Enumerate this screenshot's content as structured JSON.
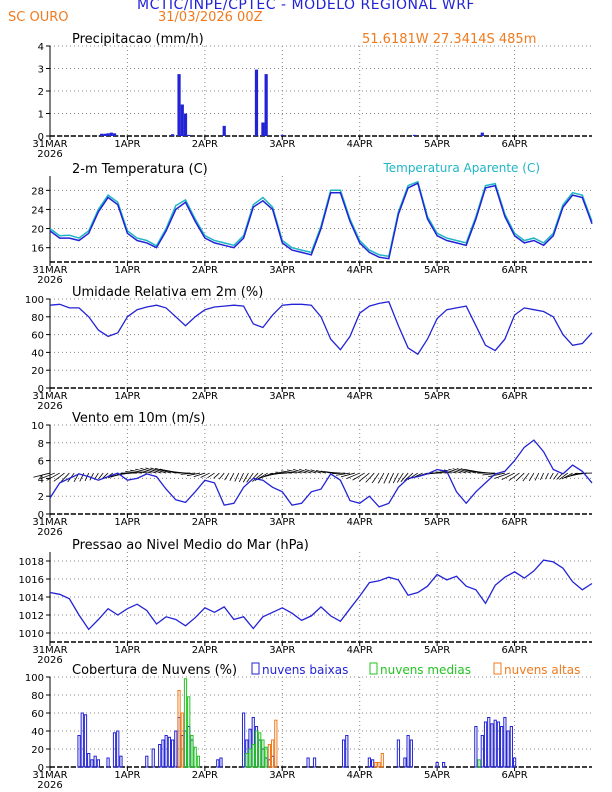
{
  "header": {
    "title": "MCTIC/INPE/CPTEC - MODELO REGIONAL WRF",
    "station": "SC OURO",
    "datetime": "31/03/2026 00Z",
    "coords": "51.6181W 27.3414S 485m"
  },
  "colors": {
    "blue": "#2323d6",
    "cyan": "#1fb5c6",
    "green": "#22c422",
    "orange": "#f07a1e",
    "black": "#000000"
  },
  "x_axis": {
    "tick_labels": [
      "31MAR",
      "1APR",
      "2APR",
      "3APR",
      "4APR",
      "5APR",
      "6APR"
    ],
    "year_label": "2026",
    "range_hours": [
      0,
      168
    ]
  },
  "chart_data": [
    {
      "id": "precip",
      "type": "bar",
      "title": "Precipitacao (mm/h)",
      "ylim": [
        0,
        4
      ],
      "yticks": [
        0,
        1,
        2,
        3,
        4
      ],
      "x_hours": [
        16,
        17,
        18,
        19,
        20,
        38,
        40,
        41,
        42,
        43,
        54,
        64,
        66,
        67,
        72,
        113,
        134
      ],
      "values": [
        0.1,
        0.1,
        0.12,
        0.15,
        0.12,
        0.08,
        2.75,
        1.4,
        1.0,
        0.05,
        0.45,
        2.95,
        0.6,
        2.75,
        0.05,
        0.05,
        0.15
      ]
    },
    {
      "id": "temp",
      "type": "line",
      "title": "2-m Temperatura (C)",
      "legend": "Temperatura Aparente (C)",
      "ylim": [
        13,
        31
      ],
      "yticks": [
        16,
        20,
        24,
        28
      ],
      "x_hours": [
        0,
        3,
        6,
        9,
        12,
        15,
        18,
        21,
        24,
        27,
        30,
        33,
        36,
        39,
        42,
        45,
        48,
        51,
        54,
        57,
        60,
        63,
        66,
        69,
        72,
        75,
        78,
        81,
        84,
        87,
        90,
        93,
        96,
        99,
        102,
        105,
        108,
        111,
        114,
        117,
        120,
        123,
        126,
        129,
        132,
        135,
        138,
        141,
        144,
        147,
        150,
        153,
        156,
        159,
        162,
        165,
        168
      ],
      "series": [
        {
          "name": "Temperatura 2m",
          "values": [
            19.5,
            18.0,
            18.0,
            17.5,
            19.0,
            23.5,
            26.5,
            25.0,
            19.0,
            17.5,
            17.0,
            16.0,
            19.5,
            24.0,
            25.5,
            21.5,
            18.0,
            17.0,
            16.5,
            16.0,
            18.0,
            24.5,
            25.8,
            24.0,
            17.0,
            15.5,
            15.0,
            14.5,
            20.0,
            27.5,
            27.5,
            21.5,
            17.0,
            15.0,
            14.0,
            13.7,
            23.0,
            28.5,
            29.5,
            22.0,
            18.5,
            17.5,
            17.0,
            16.5,
            22.0,
            28.5,
            29.0,
            22.5,
            18.5,
            17.0,
            17.5,
            16.5,
            18.5,
            24.5,
            27.0,
            26.5,
            21.0
          ]
        },
        {
          "name": "Temperatura Aparente",
          "values": [
            20.0,
            18.5,
            18.6,
            18.0,
            19.5,
            24.0,
            27.0,
            25.5,
            19.5,
            18.0,
            17.5,
            16.4,
            20.0,
            24.8,
            26.0,
            22.0,
            18.5,
            17.5,
            17.0,
            16.5,
            18.5,
            25.0,
            26.5,
            24.5,
            17.5,
            16.0,
            15.5,
            15.0,
            20.5,
            28.0,
            28.0,
            22.0,
            17.5,
            15.5,
            14.5,
            14.2,
            23.5,
            29.0,
            29.8,
            22.5,
            19.0,
            18.0,
            17.5,
            17.0,
            22.5,
            29.0,
            29.4,
            23.0,
            19.0,
            17.5,
            18.0,
            17.0,
            19.0,
            25.0,
            27.5,
            27.0,
            21.5
          ]
        }
      ]
    },
    {
      "id": "rh",
      "type": "line",
      "title": "Umidade Relativa em 2m (%)",
      "ylim": [
        0,
        100
      ],
      "yticks": [
        0,
        20,
        40,
        60,
        80,
        100
      ],
      "x_hours": [
        0,
        3,
        6,
        9,
        12,
        15,
        18,
        21,
        24,
        27,
        30,
        33,
        36,
        39,
        42,
        45,
        48,
        51,
        54,
        57,
        60,
        63,
        66,
        69,
        72,
        75,
        78,
        81,
        84,
        87,
        90,
        93,
        96,
        99,
        102,
        105,
        108,
        111,
        114,
        117,
        120,
        123,
        126,
        129,
        132,
        135,
        138,
        141,
        144,
        147,
        150,
        153,
        156,
        159,
        162,
        165,
        168
      ],
      "values": [
        93,
        94,
        90,
        90,
        80,
        65,
        58,
        62,
        80,
        88,
        91,
        93,
        90,
        80,
        70,
        80,
        88,
        91,
        92,
        93,
        92,
        72,
        68,
        82,
        93,
        94,
        94,
        93,
        80,
        55,
        43,
        58,
        84,
        92,
        95,
        97,
        70,
        45,
        38,
        55,
        78,
        88,
        90,
        92,
        70,
        48,
        42,
        55,
        82,
        90,
        88,
        86,
        80,
        60,
        48,
        50,
        62
      ]
    },
    {
      "id": "wind",
      "type": "line",
      "title": "Vento em 10m (m/s)",
      "ylim": [
        0,
        10
      ],
      "yticks": [
        0,
        2,
        4,
        6,
        8,
        10
      ],
      "x_hours": [
        0,
        3,
        6,
        9,
        12,
        15,
        18,
        21,
        24,
        27,
        30,
        33,
        36,
        39,
        42,
        45,
        48,
        51,
        54,
        57,
        60,
        63,
        66,
        69,
        72,
        75,
        78,
        81,
        84,
        87,
        90,
        93,
        96,
        99,
        102,
        105,
        108,
        111,
        114,
        117,
        120,
        123,
        126,
        129,
        132,
        135,
        138,
        141,
        144,
        147,
        150,
        153,
        156,
        159,
        162,
        165,
        168
      ],
      "values": [
        1.8,
        3.5,
        4.0,
        4.5,
        4.2,
        3.8,
        4.2,
        4.6,
        3.8,
        4.0,
        4.5,
        4.2,
        2.8,
        1.6,
        1.3,
        2.5,
        3.8,
        3.5,
        1.0,
        1.2,
        3.0,
        4.0,
        3.8,
        3.0,
        2.5,
        1.0,
        1.2,
        2.5,
        2.8,
        4.5,
        3.8,
        1.5,
        1.2,
        2.0,
        0.8,
        1.2,
        3.0,
        4.0,
        4.2,
        4.5,
        5.0,
        4.8,
        2.5,
        1.2,
        2.5,
        3.5,
        4.5,
        4.8,
        6.0,
        7.5,
        8.3,
        7.0,
        5.0,
        4.5,
        5.5,
        4.8,
        3.5
      ]
    },
    {
      "id": "pressure",
      "type": "line",
      "title": "Pressao ao Nivel Medio do Mar (hPa)",
      "ylim": [
        1009,
        1019
      ],
      "yticks": [
        1010,
        1012,
        1014,
        1016,
        1018
      ],
      "x_hours": [
        0,
        3,
        6,
        9,
        12,
        15,
        18,
        21,
        24,
        27,
        30,
        33,
        36,
        39,
        42,
        45,
        48,
        51,
        54,
        57,
        60,
        63,
        66,
        69,
        72,
        75,
        78,
        81,
        84,
        87,
        90,
        93,
        96,
        99,
        102,
        105,
        108,
        111,
        114,
        117,
        120,
        123,
        126,
        129,
        132,
        135,
        138,
        141,
        144,
        147,
        150,
        153,
        156,
        159,
        162,
        165,
        168
      ],
      "values": [
        1014.5,
        1014.3,
        1013.8,
        1012.0,
        1010.4,
        1011.5,
        1012.7,
        1012.0,
        1012.7,
        1013.2,
        1012.5,
        1011.0,
        1011.8,
        1011.5,
        1010.8,
        1011.7,
        1012.8,
        1012.3,
        1012.9,
        1011.5,
        1011.8,
        1010.5,
        1011.8,
        1012.3,
        1012.8,
        1012.2,
        1011.4,
        1011.9,
        1012.9,
        1011.9,
        1011.3,
        1012.7,
        1014.1,
        1015.6,
        1015.8,
        1016.2,
        1015.9,
        1014.2,
        1014.5,
        1015.2,
        1016.5,
        1015.9,
        1016.3,
        1015.2,
        1014.8,
        1013.3,
        1015.3,
        1016.2,
        1016.8,
        1016.1,
        1016.9,
        1018.1,
        1017.9,
        1017.2,
        1015.7,
        1014.8,
        1015.5
      ]
    },
    {
      "id": "clouds",
      "type": "bar",
      "title": "Cobertura de Nuvens (%)",
      "legend": [
        "nuvens baixas",
        "nuvens medias",
        "nuvens altas"
      ],
      "ylim": [
        0,
        100
      ],
      "yticks": [
        0,
        20,
        40,
        60,
        80,
        100
      ],
      "series": [
        {
          "name": "nuvens baixas",
          "x_hours": [
            9,
            10,
            11,
            12,
            13,
            14,
            15,
            18,
            20,
            21,
            22,
            30,
            32,
            34,
            35,
            36,
            37,
            38,
            39,
            40,
            41,
            42,
            43,
            44,
            52,
            53,
            60,
            61,
            62,
            63,
            64,
            65,
            66,
            67,
            68,
            69,
            80,
            82,
            91,
            92,
            99,
            100,
            108,
            110,
            111,
            112,
            120,
            122,
            132,
            134,
            135,
            136,
            137,
            138,
            139,
            140,
            141,
            142,
            143,
            144
          ],
          "values": [
            35,
            60,
            58,
            15,
            8,
            12,
            8,
            10,
            38,
            40,
            12,
            12,
            20,
            25,
            30,
            35,
            33,
            30,
            40,
            55,
            35,
            40,
            45,
            30,
            8,
            10,
            60,
            30,
            42,
            55,
            45,
            30,
            20,
            10,
            8,
            12,
            10,
            10,
            30,
            35,
            10,
            8,
            30,
            10,
            35,
            30,
            5,
            5,
            45,
            35,
            50,
            55,
            48,
            52,
            50,
            45,
            55,
            40,
            45,
            10
          ]
        },
        {
          "name": "nuvens medias",
          "x_hours": [
            41,
            42,
            43,
            44,
            45,
            46,
            61,
            62,
            63,
            64,
            65,
            66,
            67,
            133
          ],
          "values": [
            20,
            98,
            78,
            35,
            22,
            12,
            15,
            20,
            25,
            40,
            38,
            30,
            22,
            8
          ]
        },
        {
          "name": "nuvens altas",
          "x_hours": [
            40,
            41,
            68,
            69,
            70,
            101,
            102,
            103
          ],
          "values": [
            85,
            60,
            25,
            30,
            52,
            5,
            5,
            15
          ]
        }
      ]
    }
  ]
}
